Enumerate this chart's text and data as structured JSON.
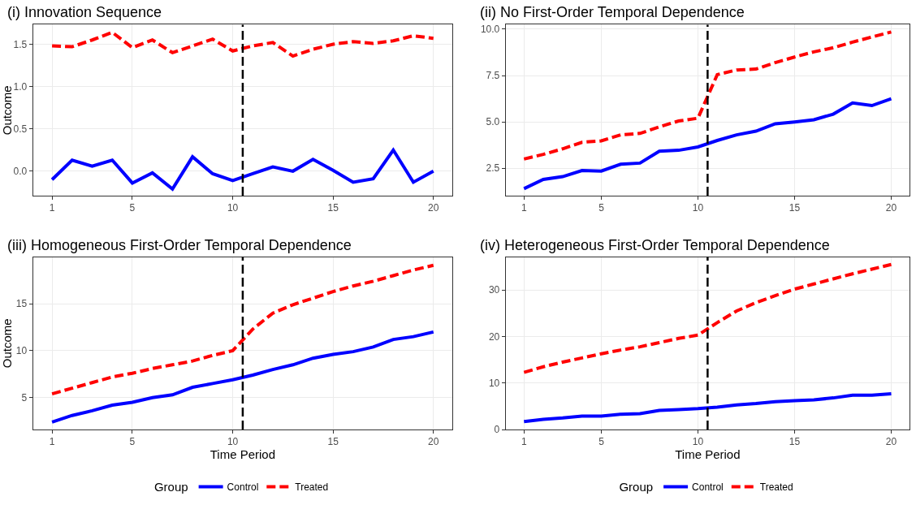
{
  "chart_data": [
    {
      "type": "line",
      "title": "(i) Innovation Sequence",
      "ylabel": "Outcome",
      "x": [
        1,
        2,
        3,
        4,
        5,
        6,
        7,
        8,
        9,
        10,
        11,
        12,
        13,
        14,
        15,
        16,
        17,
        18,
        19,
        20
      ],
      "xlim": [
        0.05,
        20.95
      ],
      "xticks": [
        1,
        5,
        10,
        15,
        20
      ],
      "ylim": [
        -0.29,
        1.73
      ],
      "yticks": [
        {
          "value": 0,
          "label": "0.0"
        },
        {
          "value": 0.5,
          "label": "0.5"
        },
        {
          "value": 1,
          "label": "1.0"
        },
        {
          "value": 1.5,
          "label": "1.5"
        }
      ],
      "grid": true,
      "legend": false,
      "series": [
        {
          "color": "#0000ff",
          "line_style": "solid",
          "values": [
            -0.1,
            0.13,
            0.06,
            0.13,
            -0.14,
            -0.02,
            -0.21,
            0.17,
            -0.03,
            -0.11,
            -0.03,
            0.05,
            0.0,
            0.14,
            0.01,
            -0.13,
            -0.09,
            0.25,
            -0.13,
            0.0
          ]
        },
        {
          "color": "#ff0000",
          "line_style": "dashed",
          "values": [
            1.48,
            1.47,
            1.55,
            1.64,
            1.46,
            1.55,
            1.4,
            1.48,
            1.56,
            1.42,
            1.48,
            1.52,
            1.36,
            1.44,
            1.5,
            1.53,
            1.51,
            1.54,
            1.6,
            1.57
          ]
        }
      ],
      "ref_lines": [
        {
          "axis": "x",
          "value": 10.5,
          "color": "#000000",
          "line_style": "dashed"
        }
      ]
    },
    {
      "type": "line",
      "title": "(ii) No First-Order Temporal Dependence",
      "x": [
        1,
        2,
        3,
        4,
        5,
        6,
        7,
        8,
        9,
        10,
        11,
        12,
        13,
        14,
        15,
        16,
        17,
        18,
        19,
        20
      ],
      "xlim": [
        0.05,
        20.95
      ],
      "xticks": [
        1,
        5,
        10,
        15,
        20
      ],
      "ylim": [
        1.02,
        10.24
      ],
      "yticks": [
        {
          "value": 2.5,
          "label": "2.5"
        },
        {
          "value": 5,
          "label": "5.0"
        },
        {
          "value": 7.5,
          "label": "7.5"
        },
        {
          "value": 10,
          "label": "10.0"
        }
      ],
      "grid": true,
      "legend": false,
      "series": [
        {
          "color": "#0000ff",
          "line_style": "solid",
          "values": [
            1.4,
            1.9,
            2.05,
            2.38,
            2.35,
            2.72,
            2.78,
            3.42,
            3.47,
            3.65,
            4.0,
            4.3,
            4.5,
            4.9,
            5.0,
            5.12,
            5.42,
            6.02,
            5.88,
            6.25
          ]
        },
        {
          "color": "#ff0000",
          "line_style": "dashed",
          "values": [
            3.0,
            3.25,
            3.55,
            3.9,
            3.98,
            4.3,
            4.38,
            4.73,
            5.05,
            5.2,
            7.55,
            7.8,
            7.85,
            8.2,
            8.5,
            8.78,
            9.0,
            9.3,
            9.58,
            9.85
          ]
        }
      ],
      "ref_lines": [
        {
          "axis": "x",
          "value": 10.5,
          "color": "#000000",
          "line_style": "dashed"
        }
      ]
    },
    {
      "type": "line",
      "title": "(iii) Homogeneous First-Order Temporal Dependence",
      "xlabel": "Time Period",
      "ylabel": "Outcome",
      "legend_title": "Group",
      "x": [
        1,
        2,
        3,
        4,
        5,
        6,
        7,
        8,
        9,
        10,
        11,
        12,
        13,
        14,
        15,
        16,
        17,
        18,
        19,
        20
      ],
      "xlim": [
        0.05,
        20.95
      ],
      "xticks": [
        1,
        5,
        10,
        15,
        20
      ],
      "ylim": [
        1.6,
        19.98
      ],
      "yticks": [
        5,
        10,
        15
      ],
      "grid": true,
      "legend": "bottom",
      "series": [
        {
          "name": "Control",
          "color": "#0000ff",
          "line_style": "solid",
          "values": [
            2.4,
            3.1,
            3.6,
            4.2,
            4.5,
            5.0,
            5.3,
            6.1,
            6.5,
            6.9,
            7.4,
            8.0,
            8.5,
            9.2,
            9.6,
            9.9,
            10.4,
            11.2,
            11.5,
            12.0
          ]
        },
        {
          "name": "Treated",
          "color": "#ff0000",
          "line_style": "dashed",
          "values": [
            5.4,
            6.0,
            6.6,
            7.2,
            7.6,
            8.1,
            8.5,
            8.9,
            9.5,
            10.0,
            12.3,
            14.0,
            14.9,
            15.6,
            16.3,
            16.9,
            17.4,
            18.0,
            18.6,
            19.1
          ]
        }
      ],
      "ref_lines": [
        {
          "axis": "x",
          "value": 10.5,
          "color": "#000000",
          "line_style": "dashed"
        }
      ]
    },
    {
      "type": "line",
      "title": "(iv) Heterogeneous First-Order Temporal Dependence",
      "xlabel": "Time Period",
      "legend_title": "Group",
      "x": [
        1,
        2,
        3,
        4,
        5,
        6,
        7,
        8,
        9,
        10,
        11,
        12,
        13,
        14,
        15,
        16,
        17,
        18,
        19,
        20
      ],
      "xlim": [
        0.05,
        20.95
      ],
      "xticks": [
        1,
        5,
        10,
        15,
        20
      ],
      "ylim": [
        0,
        37.1
      ],
      "yticks": [
        0,
        10,
        20,
        30
      ],
      "grid": true,
      "legend": "bottom",
      "series": [
        {
          "name": "Control",
          "color": "#0000ff",
          "line_style": "solid",
          "values": [
            1.7,
            2.2,
            2.5,
            2.9,
            2.9,
            3.3,
            3.4,
            4.1,
            4.3,
            4.5,
            4.8,
            5.3,
            5.6,
            6.0,
            6.2,
            6.4,
            6.8,
            7.4,
            7.4,
            7.7
          ]
        },
        {
          "name": "Treated",
          "color": "#ff0000",
          "line_style": "dashed",
          "values": [
            12.3,
            13.5,
            14.5,
            15.4,
            16.3,
            17.1,
            17.8,
            18.7,
            19.6,
            20.3,
            23.0,
            25.5,
            27.3,
            28.8,
            30.2,
            31.3,
            32.4,
            33.5,
            34.5,
            35.5
          ]
        }
      ],
      "ref_lines": [
        {
          "axis": "x",
          "value": 10.5,
          "color": "#000000",
          "line_style": "dashed"
        }
      ]
    }
  ]
}
